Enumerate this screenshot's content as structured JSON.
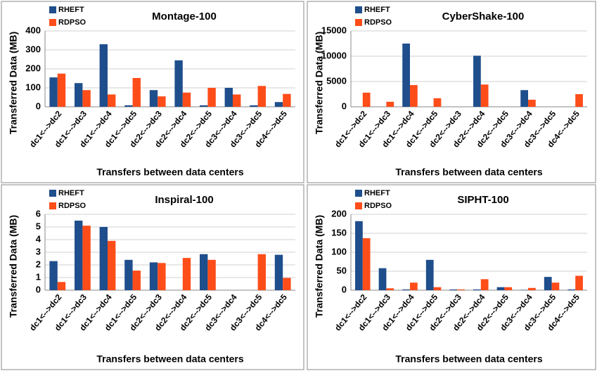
{
  "chart_data": [
    {
      "type": "bar",
      "title": "Montage-100",
      "ylabel": "Transferred Data (MB)",
      "xlabel": "Transfers between data centers",
      "categories": [
        "dc1<-->dc2",
        "dc1<-->dc3",
        "dc1<-->dc4",
        "dc1<-->dc5",
        "dc2<-->dc3",
        "dc2<-->dc4",
        "dc2<-->dc5",
        "dc3<-->dc4",
        "dc3<-->dc5",
        "dc4<-->dc5"
      ],
      "series": [
        {
          "name": "RHEFT",
          "color": "#1f4e8c",
          "values": [
            155,
            125,
            330,
            8,
            88,
            245,
            8,
            100,
            8,
            25
          ]
        },
        {
          "name": "RDPSO",
          "color": "#ff4d1a",
          "values": [
            175,
            88,
            65,
            152,
            55,
            75,
            100,
            65,
            110,
            68
          ]
        }
      ],
      "ylim": [
        0,
        400
      ],
      "yticks": [
        0,
        100,
        200,
        300,
        400
      ],
      "grid": true,
      "legend": "upper left"
    },
    {
      "type": "bar",
      "title": "CyberShake-100",
      "ylabel": "Transferred Data (MB)",
      "xlabel": "Transfers between data centers",
      "categories": [
        "dc1<-->dc2",
        "dc1<-->dc3",
        "dc1<-->dc4",
        "dc1<-->dc5",
        "dc2<-->dc3",
        "dc2<-->dc4",
        "dc2<-->dc5",
        "dc3<-->dc4",
        "dc3<-->dc5",
        "dc4<-->dc5"
      ],
      "series": [
        {
          "name": "RHEFT",
          "color": "#1f4e8c",
          "values": [
            0,
            0,
            12500,
            0,
            0,
            10100,
            0,
            3300,
            0,
            0
          ]
        },
        {
          "name": "RDPSO",
          "color": "#ff4d1a",
          "values": [
            2800,
            1000,
            4300,
            1700,
            0,
            4400,
            0,
            1400,
            0,
            2500
          ]
        }
      ],
      "ylim": [
        0,
        15000
      ],
      "yticks": [
        0,
        5000,
        10000,
        15000
      ],
      "grid": true,
      "legend": "upper left"
    },
    {
      "type": "bar",
      "title": "Inspiral-100",
      "ylabel": "Transferred Data (MB)",
      "xlabel": "Transfers between data centers",
      "categories": [
        "dc1<-->dc2",
        "dc1<-->dc3",
        "dc1<-->dc4",
        "dc1<-->dc5",
        "dc2<-->dc3",
        "dc2<-->dc4",
        "dc2<-->dc5",
        "dc3<-->dc4",
        "dc3<-->dc5",
        "dc4<-->dc5"
      ],
      "series": [
        {
          "name": "RHEFT",
          "color": "#1f4e8c",
          "values": [
            2.3,
            5.5,
            5.0,
            2.4,
            2.2,
            0,
            2.85,
            0,
            0,
            2.8
          ]
        },
        {
          "name": "RDPSO",
          "color": "#ff4d1a",
          "values": [
            0.65,
            5.1,
            3.9,
            1.55,
            2.15,
            2.55,
            2.4,
            0,
            2.85,
            0.97
          ]
        }
      ],
      "ylim": [
        0,
        6
      ],
      "yticks": [
        0,
        1,
        2,
        3,
        4,
        5,
        6
      ],
      "grid": true,
      "legend": "upper left"
    },
    {
      "type": "bar",
      "title": "SIPHT-100",
      "ylabel": "Transferred Data (MB)",
      "xlabel": "Transfers between data centers",
      "categories": [
        "dc1<-->dc2",
        "dc1<-->dc3",
        "dc1<-->dc4",
        "dc1<-->dc5",
        "dc2<-->dc3",
        "dc2<-->dc4",
        "dc2<-->dc5",
        "dc3<-->dc4",
        "dc3<-->dc5",
        "dc4<-->dc5"
      ],
      "series": [
        {
          "name": "RHEFT",
          "color": "#1f4e8c",
          "values": [
            182,
            58,
            2,
            80,
            2,
            2,
            8,
            1,
            35,
            2
          ]
        },
        {
          "name": "RDPSO",
          "color": "#ff4d1a",
          "values": [
            137,
            5,
            20,
            8,
            2,
            29,
            8,
            6,
            20,
            38
          ]
        }
      ],
      "ylim": [
        0,
        200
      ],
      "yticks": [
        0,
        50,
        100,
        150,
        200
      ],
      "grid": true,
      "legend": "upper left"
    }
  ]
}
